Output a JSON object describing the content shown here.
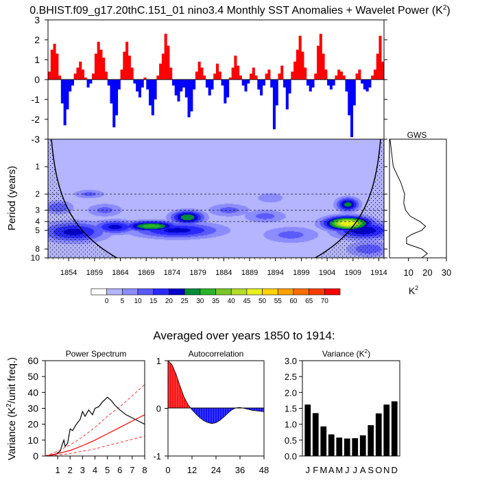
{
  "chart_data": {
    "title": "0.BHIST.f09_g17.20thC.151_01 nino3.4 Monthly SST Anomalies + Wavelet Power (K",
    "title_sup": "2",
    "title_end": ")",
    "panels": [
      {
        "type": "bar",
        "name": "sst-anomaly",
        "ylim": [
          -3,
          3
        ],
        "yticks": [
          "3",
          "2",
          "1",
          "0",
          "-1",
          "-2",
          "-3"
        ],
        "xlim": [
          1850,
          1915
        ],
        "positive_color": "#ff0000",
        "negative_color": "#0000ff",
        "x": [
          1850,
          1850.5,
          1851,
          1851.5,
          1852,
          1852.5,
          1853,
          1853.5,
          1854,
          1854.5,
          1855,
          1855.5,
          1856,
          1856.5,
          1857,
          1857.5,
          1858,
          1858.5,
          1859,
          1859.5,
          1860,
          1860.5,
          1861,
          1861.5,
          1862,
          1862.5,
          1863,
          1863.5,
          1864,
          1864.5,
          1865,
          1865.5,
          1866,
          1866.5,
          1867,
          1867.5,
          1868,
          1868.5,
          1869,
          1869.5,
          1870,
          1870.5,
          1871,
          1871.5,
          1872,
          1872.5,
          1873,
          1873.5,
          1874,
          1874.5,
          1875,
          1875.5,
          1876,
          1876.5,
          1877,
          1877.5,
          1878,
          1878.5,
          1879,
          1879.5,
          1880,
          1880.5,
          1881,
          1881.5,
          1882,
          1882.5,
          1883,
          1883.5,
          1884,
          1884.5,
          1885,
          1885.5,
          1886,
          1886.5,
          1887,
          1887.5,
          1888,
          1888.5,
          1889,
          1889.5,
          1890,
          1890.5,
          1891,
          1891.5,
          1892,
          1892.5,
          1893,
          1893.5,
          1894,
          1894.5,
          1895,
          1895.5,
          1896,
          1896.5,
          1897,
          1897.5,
          1898,
          1898.5,
          1899,
          1899.5,
          1900,
          1900.5,
          1901,
          1901.5,
          1902,
          1902.5,
          1903,
          1903.5,
          1904,
          1904.5,
          1905,
          1905.5,
          1906,
          1906.5,
          1907,
          1907.5,
          1908,
          1908.5,
          1909,
          1909.5,
          1910,
          1910.5,
          1911,
          1911.5,
          1912,
          1912.5,
          1913,
          1913.5,
          1914,
          1914.5
        ],
        "values": [
          0.4,
          1.5,
          1.8,
          1.3,
          0.2,
          -1.2,
          -2.3,
          -1.5,
          -0.6,
          -0.3,
          0.3,
          0.6,
          0.9,
          0.5,
          0.1,
          -0.4,
          -0.2,
          0.3,
          1.3,
          1.9,
          1.5,
          1.1,
          0.4,
          -0.3,
          -1.2,
          -2.4,
          -1.8,
          -0.5,
          0.5,
          1.4,
          1.9,
          1.2,
          0.6,
          -0.2,
          -0.6,
          -0.9,
          -0.4,
          0.1,
          -0.5,
          -1.3,
          -1.8,
          -1.0,
          0.2,
          0.8,
          1.3,
          2.3,
          1.7,
          0.6,
          -0.3,
          -0.8,
          -1.1,
          -0.6,
          -0.4,
          -0.9,
          -1.9,
          -1.6,
          -0.5,
          0.4,
          0.9,
          0.6,
          0.2,
          -0.4,
          -0.8,
          -0.5,
          0.3,
          0.8,
          0.4,
          -0.3,
          -1.2,
          -0.9,
          0.1,
          0.6,
          1.2,
          0.7,
          0.2,
          -0.3,
          -0.6,
          -0.2,
          0.3,
          0.6,
          0.2,
          -0.5,
          -0.8,
          -0.3,
          0.3,
          0.5,
          -0.4,
          -2.5,
          -1.3,
          0.3,
          0.7,
          -0.4,
          -1.5,
          -0.7,
          0.4,
          0.9,
          1.5,
          2.2,
          1.4,
          0.6,
          -0.3,
          -0.6,
          -0.4,
          0.3,
          1.7,
          2.3,
          1.3,
          0.5,
          -0.3,
          -0.5,
          -0.3,
          0.2,
          0.5,
          0.4,
          0.2,
          -0.6,
          -1.8,
          -2.9,
          -1.3,
          0.3,
          0.5,
          -0.2,
          -0.5,
          -0.6,
          -0.4,
          0.2,
          0.5,
          1.3,
          2.2,
          0.9
        ]
      },
      {
        "type": "heatmap",
        "name": "wavelet-power",
        "ylabel": "Period (years)",
        "ylim_period": [
          0.5,
          10
        ],
        "yticks": [
          "1",
          "2",
          "3",
          "4",
          "5",
          "8",
          "10"
        ],
        "ytick_values": [
          1,
          2,
          3,
          4,
          5,
          8,
          10
        ],
        "xlim": [
          1850,
          1915
        ],
        "xticks": [
          "1854",
          "1859",
          "1864",
          "1869",
          "1874",
          "1879",
          "1884",
          "1889",
          "1894",
          "1899",
          "1904",
          "1909",
          "1914"
        ],
        "xtick_values": [
          1854,
          1859,
          1864,
          1869,
          1874,
          1879,
          1884,
          1889,
          1894,
          1899,
          1904,
          1909,
          1914
        ],
        "dashed_periods": [
          2,
          3,
          4
        ],
        "blobs": [
          {
            "x": 1852,
            "period": 2.8,
            "power": 15,
            "sx": 2.0,
            "sy": 0.12
          },
          {
            "x": 1858,
            "period": 2.0,
            "power": 12,
            "sx": 2.2,
            "sy": 0.08
          },
          {
            "x": 1861,
            "period": 3.0,
            "power": 12,
            "sx": 2.5,
            "sy": 0.12
          },
          {
            "x": 1855,
            "period": 5.2,
            "power": 22,
            "sx": 4.5,
            "sy": 0.18
          },
          {
            "x": 1863,
            "period": 4.6,
            "power": 22,
            "sx": 3.0,
            "sy": 0.12
          },
          {
            "x": 1870,
            "period": 4.5,
            "power": 34,
            "sx": 3.5,
            "sy": 0.09
          },
          {
            "x": 1877,
            "period": 3.6,
            "power": 30,
            "sx": 2.2,
            "sy": 0.12
          },
          {
            "x": 1875,
            "period": 5.0,
            "power": 22,
            "sx": 6.0,
            "sy": 0.14
          },
          {
            "x": 1885,
            "period": 3.0,
            "power": 12,
            "sx": 3.0,
            "sy": 0.12
          },
          {
            "x": 1892,
            "period": 3.5,
            "power": 12,
            "sx": 3.0,
            "sy": 0.12
          },
          {
            "x": 1893,
            "period": 2.2,
            "power": 10,
            "sx": 2.0,
            "sy": 0.1
          },
          {
            "x": 1897,
            "period": 5.6,
            "power": 12,
            "sx": 4.0,
            "sy": 0.15
          },
          {
            "x": 1908,
            "period": 4.2,
            "power": 50,
            "sx": 3.0,
            "sy": 0.12
          },
          {
            "x": 1908,
            "period": 2.6,
            "power": 28,
            "sx": 1.5,
            "sy": 0.12
          },
          {
            "x": 1911,
            "period": 5.0,
            "power": 24,
            "sx": 4.0,
            "sy": 0.16
          },
          {
            "x": 1912,
            "period": 8.0,
            "power": 14,
            "sx": 3.0,
            "sy": 0.14
          }
        ],
        "background_power": 3
      },
      {
        "type": "line",
        "name": "global-wavelet-spectrum",
        "title": "GWS",
        "xlabel": "K",
        "xlabel_sup": "2",
        "xlim": [
          0,
          30
        ],
        "xticks": [
          "10",
          "20",
          "30"
        ],
        "xtick_values": [
          10,
          20,
          30
        ],
        "period": [
          0.5,
          1,
          1.5,
          2,
          2.5,
          3,
          3.5,
          4,
          4.5,
          5,
          5.5,
          6,
          7,
          8,
          9,
          10
        ],
        "power": [
          0.3,
          2,
          6,
          8,
          7.5,
          8.5,
          11,
          16,
          19,
          17,
          12,
          9,
          9,
          17,
          20,
          17
        ]
      }
    ],
    "colorbar": {
      "levels": [
        "0",
        "5",
        "10",
        "15",
        "20",
        "25",
        "30",
        "35",
        "40",
        "45",
        "50",
        "55",
        "60",
        "65",
        "70"
      ],
      "colors": [
        "#ffffff",
        "#b4b4ff",
        "#8c8cff",
        "#5a5aff",
        "#2828ff",
        "#0000c8",
        "#008c3c",
        "#28b428",
        "#78c828",
        "#b4dc28",
        "#e6f01e",
        "#ffd200",
        "#ffa000",
        "#ff6e00",
        "#ff3c00",
        "#ff0000"
      ]
    },
    "subtitle": "Averaged over years 1850 to 1914:",
    "bottom_charts": [
      {
        "type": "line",
        "name": "power-spectrum",
        "title": "Power Spectrum",
        "ylabel": "Variance (K",
        "ylabel_sup": "2",
        "ylabel_end": "/unit freq.)",
        "ylim": [
          0,
          60
        ],
        "yticks": [
          "0",
          "10",
          "20",
          "30",
          "40",
          "50",
          "60"
        ],
        "xlim": [
          0,
          8
        ],
        "xticks": [
          "1",
          "2",
          "3",
          "4",
          "5",
          "6",
          "7",
          "8"
        ],
        "series": [
          {
            "name": "spectrum",
            "color": "#000000",
            "x": [
              0,
              0.5,
              0.8,
              1,
              1.2,
              1.4,
              1.5,
              1.6,
              1.8,
              2,
              2.2,
              2.5,
              2.8,
              3,
              3.2,
              3.5,
              3.8,
              4,
              4.3,
              4.6,
              5,
              5.3,
              5.6,
              6,
              6.5,
              7,
              7.5,
              8
            ],
            "y": [
              0,
              0.5,
              1,
              2,
              3,
              8,
              10,
              6,
              8,
              17,
              16,
              20,
              23,
              28,
              25,
              29,
              26,
              30,
              31,
              34,
              37,
              35,
              32,
              29,
              26,
              24,
              22,
              20
            ]
          },
          {
            "name": "red-noise",
            "color": "#ff0000",
            "x": [
              0,
              1,
              2,
              3,
              4,
              5,
              6,
              7,
              8
            ],
            "y": [
              0,
              1.5,
              3.5,
              6.5,
              10,
              14,
              18,
              22,
              26
            ]
          },
          {
            "name": "red-noise-upper",
            "color": "#ff0000",
            "dashed": true,
            "x": [
              0,
              1,
              2,
              3,
              4,
              5,
              6,
              7,
              8
            ],
            "y": [
              0,
              3,
              7,
              12,
              18,
              25,
              31,
              38,
              45
            ]
          },
          {
            "name": "red-noise-lower",
            "color": "#ff0000",
            "dashed": true,
            "x": [
              0,
              1,
              2,
              3,
              4,
              5,
              6,
              7,
              8
            ],
            "y": [
              0,
              0.5,
              1.5,
              3,
              4.5,
              6.5,
              8.5,
              10.5,
              12.5
            ]
          }
        ]
      },
      {
        "type": "area",
        "name": "autocorrelation",
        "title": "Autocorrelation",
        "ylim": [
          -1,
          1
        ],
        "yticks": [
          "1",
          "0",
          "-1"
        ],
        "ytick_values": [
          1,
          0,
          -1
        ],
        "xlim": [
          0,
          48
        ],
        "xticks": [
          "0",
          "12",
          "24",
          "36",
          "48"
        ],
        "xtick_values": [
          0,
          12,
          24,
          36,
          48
        ],
        "x": [
          0,
          2,
          4,
          6,
          8,
          10,
          12,
          14,
          16,
          18,
          20,
          22,
          24,
          26,
          28,
          30,
          32,
          34,
          36,
          38,
          40,
          42,
          44,
          46,
          48
        ],
        "values": [
          1,
          0.92,
          0.72,
          0.47,
          0.24,
          0.08,
          -0.03,
          -0.12,
          -0.2,
          -0.26,
          -0.3,
          -0.32,
          -0.3,
          -0.25,
          -0.18,
          -0.1,
          -0.03,
          0.01,
          0.02,
          0,
          -0.02,
          -0.04,
          -0.05,
          -0.06,
          -0.07
        ],
        "positive_color": "#ff0000",
        "negative_color": "#0000ff"
      },
      {
        "type": "bar",
        "name": "monthly-variance",
        "title": "Variance (K",
        "title_sup": "2",
        "title_end": ")",
        "categories": [
          "J",
          "F",
          "M",
          "A",
          "M",
          "J",
          "J",
          "A",
          "S",
          "O",
          "N",
          "D"
        ],
        "values": [
          1.62,
          1.35,
          0.93,
          0.68,
          0.58,
          0.55,
          0.56,
          0.65,
          0.97,
          1.34,
          1.62,
          1.72
        ],
        "ylim": [
          0,
          3
        ],
        "yticks": [
          "0.0",
          "0.5",
          "1.0",
          "1.5",
          "2.0",
          "2.5",
          "3.0"
        ],
        "ytick_values": [
          0,
          0.5,
          1,
          1.5,
          2,
          2.5,
          3
        ]
      }
    ]
  }
}
